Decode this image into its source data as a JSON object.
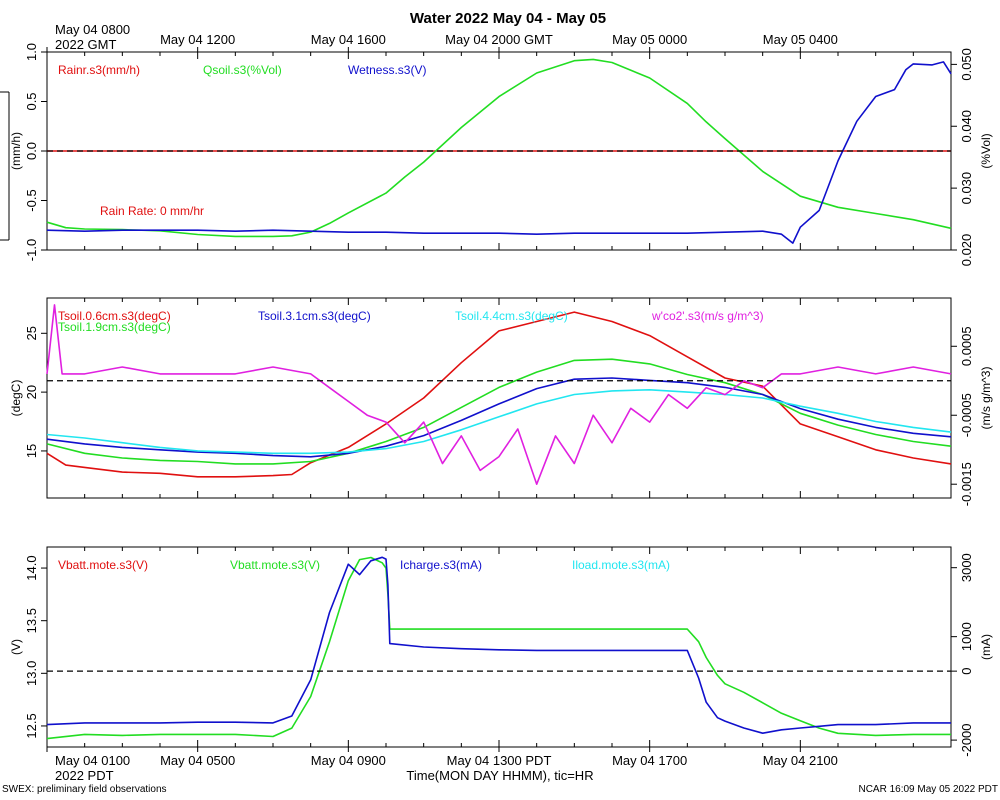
{
  "title": "Water 2022 May 04 - May 05",
  "top_axis": {
    "corner_line1": "May 04 0800",
    "corner_line2": "2022 GMT",
    "labels": [
      {
        "text": "May 04 1200",
        "hour": 4
      },
      {
        "text": "May 04 1600",
        "hour": 8
      },
      {
        "text": "May 04 2000 GMT",
        "hour": 12
      },
      {
        "text": "May 05 0000",
        "hour": 16
      },
      {
        "text": "May 05 0400",
        "hour": 20
      }
    ]
  },
  "bottom_axis": {
    "corner_line1": "May 04 0100",
    "corner_line2": "2022 PDT",
    "labels": [
      {
        "text": "May 04 0500",
        "hour": 4
      },
      {
        "text": "May 04 0900",
        "hour": 8
      },
      {
        "text": "May 04 1300 PDT",
        "hour": 12
      },
      {
        "text": "May 04 1700",
        "hour": 16
      },
      {
        "text": "May 04 2100",
        "hour": 20
      }
    ],
    "xlabel": "Time(MON DAY HHMM), tic=HR"
  },
  "footer": {
    "left": "SWEX: preliminary field observations",
    "right": "NCAR 16:09 May 05 2022 PDT"
  },
  "colors": {
    "red": "#e01010",
    "green": "#22dd22",
    "blue": "#1010cc",
    "cyan": "#22e6f0",
    "magenta": "#e020e0"
  },
  "chart_data": [
    {
      "type": "line",
      "panel": "water",
      "x_unit": "hours since May 04 0100 PDT",
      "xlim": [
        0,
        24
      ],
      "ylabel_left": "(mm/h)",
      "ylim_left": [
        -1.0,
        1.0
      ],
      "yticks_left": [
        "-1.0",
        "-0.5",
        "0.0",
        "0.5",
        "1.0"
      ],
      "ylabel_right": "(%Vol)",
      "ylim_right": [
        0.02,
        0.052
      ],
      "yticks_right": [
        "0.020",
        "0.030",
        "0.040",
        "0.050"
      ],
      "legend": [
        {
          "text": "Rainr.s3(mm/h)",
          "color": "#e01010"
        },
        {
          "text": "Qsoil.s3(%Vol)",
          "color": "#22dd22"
        },
        {
          "text": "Wetness.s3(V)",
          "color": "#1010cc"
        }
      ],
      "annotation": {
        "text": "Rain Rate: 0 mm/hr",
        "color": "#e01010"
      },
      "reference_line": {
        "axis": "left",
        "value": 0.0
      },
      "series": [
        {
          "name": "Rainr.s3(mm/h)",
          "axis": "left",
          "color": "#e01010",
          "x": [
            0,
            24
          ],
          "y": [
            0.0,
            0.0
          ]
        },
        {
          "name": "Qsoil.s3(%Vol)",
          "axis": "right",
          "color": "#22dd22",
          "x": [
            0,
            0.5,
            1,
            2,
            3,
            4,
            5,
            6,
            6.5,
            7,
            7.5,
            8,
            9,
            9.5,
            10,
            11,
            12,
            13,
            14,
            14.5,
            15,
            16,
            17,
            17.5,
            18,
            19,
            20,
            21,
            22,
            23,
            24
          ],
          "y": [
            0.0245,
            0.0236,
            0.0234,
            0.0233,
            0.0231,
            0.0225,
            0.0222,
            0.0222,
            0.0223,
            0.0229,
            0.0243,
            0.026,
            0.0292,
            0.0318,
            0.0342,
            0.0398,
            0.0448,
            0.0486,
            0.0506,
            0.0508,
            0.0503,
            0.0478,
            0.0437,
            0.0407,
            0.038,
            0.0327,
            0.0287,
            0.0269,
            0.0259,
            0.0249,
            0.0235
          ]
        },
        {
          "name": "Wetness.s3(V)",
          "axis": "left",
          "color": "#1010cc",
          "x": [
            0,
            1,
            2,
            3,
            4,
            5,
            6,
            7,
            8,
            9,
            10,
            11,
            12,
            13,
            14,
            15,
            16,
            17,
            18,
            19,
            19.5,
            19.8,
            20,
            20.5,
            21,
            21.5,
            22,
            22.5,
            22.8,
            23,
            23.5,
            23.8,
            24
          ],
          "y": [
            -0.8,
            -0.81,
            -0.8,
            -0.8,
            -0.8,
            -0.81,
            -0.8,
            -0.81,
            -0.82,
            -0.82,
            -0.83,
            -0.83,
            -0.83,
            -0.84,
            -0.83,
            -0.83,
            -0.83,
            -0.83,
            -0.82,
            -0.81,
            -0.84,
            -0.93,
            -0.77,
            -0.6,
            -0.1,
            0.3,
            0.55,
            0.62,
            0.82,
            0.88,
            0.87,
            0.9,
            0.78
          ]
        }
      ]
    },
    {
      "type": "line",
      "panel": "soil temperature",
      "x_unit": "hours since May 04 0100 PDT",
      "xlim": [
        0,
        24
      ],
      "ylabel_left": "(degC)",
      "ylim_left": [
        11,
        28
      ],
      "yticks_left": [
        "15",
        "20",
        "25"
      ],
      "ylabel_right": "(m/s g/m^3)",
      "ylim_right": [
        -0.0017,
        0.0012
      ],
      "yticks_right": [
        "-0.0015",
        "-0.0005",
        "0.0005"
      ],
      "legend": [
        {
          "text": "Tsoil.0.6cm.s3(degC)",
          "color": "#e01010"
        },
        {
          "text": "Tsoil.1.9cm.s3(degC)",
          "color": "#22dd22"
        },
        {
          "text": "Tsoil.3.1cm.s3(degC)",
          "color": "#1010cc"
        },
        {
          "text": "Tsoil.4.4cm.s3(degC)",
          "color": "#22e6f0"
        },
        {
          "text": "w'co2'.s3(m/s g/m^3)",
          "color": "#e020e0"
        }
      ],
      "reference_line": {
        "axis": "right",
        "value": 0.0
      },
      "series": [
        {
          "name": "Tsoil.0.6cm.s3(degC)",
          "axis": "left",
          "color": "#e01010",
          "x": [
            0,
            0.5,
            1,
            2,
            3,
            4,
            5,
            6,
            6.5,
            7,
            8,
            9,
            10,
            11,
            12,
            13,
            14,
            15,
            16,
            17,
            18,
            19,
            20,
            21,
            22,
            23,
            24
          ],
          "y": [
            14.8,
            13.8,
            13.6,
            13.2,
            13.1,
            12.8,
            12.8,
            12.9,
            13.0,
            14.0,
            15.3,
            17.3,
            19.5,
            22.5,
            25.2,
            26.0,
            26.8,
            26.0,
            24.8,
            23.0,
            21.2,
            20.5,
            17.3,
            16.2,
            15.1,
            14.4,
            13.9
          ]
        },
        {
          "name": "Tsoil.1.9cm.s3(degC)",
          "axis": "left",
          "color": "#22dd22",
          "x": [
            0,
            1,
            2,
            3,
            4,
            5,
            6,
            7,
            8,
            9,
            10,
            11,
            12,
            13,
            14,
            15,
            16,
            17,
            18,
            19,
            20,
            21,
            22,
            23,
            24
          ],
          "y": [
            15.6,
            14.8,
            14.4,
            14.2,
            14.1,
            13.9,
            13.9,
            14.1,
            14.8,
            15.8,
            17.0,
            18.7,
            20.4,
            21.7,
            22.7,
            22.8,
            22.4,
            21.5,
            20.8,
            19.8,
            18.2,
            17.2,
            16.4,
            15.8,
            15.4
          ]
        },
        {
          "name": "Tsoil.3.1cm.s3(degC)",
          "axis": "left",
          "color": "#1010cc",
          "x": [
            0,
            1,
            2,
            3,
            4,
            5,
            6,
            7,
            8,
            9,
            10,
            11,
            12,
            13,
            14,
            15,
            16,
            17,
            18,
            19,
            20,
            21,
            22,
            23,
            24
          ],
          "y": [
            16.0,
            15.6,
            15.3,
            15.1,
            14.9,
            14.8,
            14.6,
            14.5,
            14.8,
            15.4,
            16.3,
            17.6,
            19.0,
            20.3,
            21.1,
            21.2,
            21.0,
            20.8,
            20.4,
            19.8,
            18.6,
            17.7,
            17.0,
            16.5,
            16.2
          ]
        },
        {
          "name": "Tsoil.4.4cm.s3(degC)",
          "axis": "left",
          "color": "#22e6f0",
          "x": [
            0,
            1,
            2,
            3,
            4,
            5,
            6,
            7,
            8,
            9,
            10,
            11,
            12,
            13,
            14,
            15,
            16,
            17,
            18,
            19,
            20,
            21,
            22,
            23,
            24
          ],
          "y": [
            16.4,
            16.1,
            15.7,
            15.3,
            15.0,
            14.9,
            14.8,
            14.8,
            14.9,
            15.2,
            15.8,
            16.8,
            17.9,
            19.0,
            19.8,
            20.1,
            20.2,
            20.0,
            19.8,
            19.5,
            18.8,
            18.2,
            17.5,
            17.0,
            16.6
          ]
        },
        {
          "name": "w'co2'.s3(m/s g/m^3)",
          "axis": "right",
          "color": "#e020e0",
          "x": [
            0,
            0.2,
            0.4,
            1,
            2,
            3,
            4,
            5,
            6,
            7,
            7.5,
            8,
            8.5,
            9,
            9.5,
            10,
            10.5,
            11,
            11.5,
            12,
            12.5,
            13,
            13.5,
            14,
            14.5,
            15,
            15.5,
            16,
            16.5,
            17,
            17.5,
            18,
            18.5,
            19,
            19.5,
            20,
            21,
            22,
            23,
            24
          ],
          "y": [
            0.0001,
            0.0011,
            0.0001,
            0.0001,
            0.0002,
            0.0001,
            0.0001,
            0.0001,
            0.0002,
            0.0001,
            -0.0001,
            -0.0003,
            -0.0005,
            -0.0006,
            -0.0009,
            -0.0006,
            -0.0012,
            -0.0008,
            -0.0013,
            -0.0011,
            -0.0007,
            -0.0015,
            -0.0008,
            -0.0012,
            -0.0005,
            -0.0009,
            -0.0004,
            -0.0006,
            -0.0002,
            -0.0004,
            -0.0001,
            -0.0002,
            0.0,
            -0.0001,
            0.0001,
            0.0001,
            0.0002,
            0.0001,
            0.0002,
            0.0001
          ]
        }
      ]
    },
    {
      "type": "line",
      "panel": "battery",
      "x_unit": "hours since May 04 0100 PDT",
      "xlim": [
        0,
        24
      ],
      "ylabel_left": "(V)",
      "ylim_left": [
        12.3,
        14.2
      ],
      "yticks_left": [
        "12.5",
        "13.0",
        "13.5",
        "14.0"
      ],
      "ylabel_right": "(mA)",
      "ylim_right": [
        -2200,
        3600
      ],
      "yticks_right": [
        "-2000",
        "0",
        "1000",
        "3000"
      ],
      "legend": [
        {
          "text": "Vbatt.mote.s3(V)",
          "color": "#e01010"
        },
        {
          "text": "Vbatt.mote.s3(V)",
          "color": "#22dd22"
        },
        {
          "text": "Icharge.s3(mA)",
          "color": "#1010cc"
        },
        {
          "text": "Iload.mote.s3(mA)",
          "color": "#22e6f0"
        }
      ],
      "reference_line": {
        "axis": "right",
        "value": 0
      },
      "series": [
        {
          "name": "Vbatt.mote.s3(V)",
          "axis": "left",
          "color": "#22dd22",
          "x": [
            0,
            1,
            2,
            3,
            4,
            5,
            6,
            6.5,
            7,
            7.5,
            8,
            8.3,
            8.6,
            8.9,
            9.0,
            9.05,
            9.1,
            10,
            11,
            12,
            13,
            14,
            15,
            16,
            17,
            17.3,
            17.5,
            17.8,
            18,
            18.5,
            19,
            19.5,
            20,
            20.5,
            21,
            22,
            23,
            24
          ],
          "y": [
            12.38,
            12.42,
            12.41,
            12.42,
            12.42,
            12.42,
            12.4,
            12.48,
            12.78,
            13.3,
            13.88,
            14.08,
            14.1,
            14.05,
            14.0,
            13.75,
            13.42,
            13.42,
            13.42,
            13.42,
            13.42,
            13.42,
            13.42,
            13.42,
            13.42,
            13.3,
            13.15,
            12.98,
            12.9,
            12.82,
            12.72,
            12.62,
            12.55,
            12.48,
            12.43,
            12.41,
            12.42,
            12.42
          ]
        },
        {
          "name": "Icharge.s3(mA)",
          "axis": "right",
          "color": "#1010cc",
          "x": [
            0,
            1,
            2,
            3,
            4,
            5,
            6,
            6.5,
            7,
            7.5,
            8,
            8.3,
            8.6,
            8.9,
            9.0,
            9.05,
            9.1,
            10,
            11,
            12,
            13,
            14,
            15,
            16,
            17,
            17.3,
            17.5,
            17.8,
            18,
            18.5,
            19,
            19.5,
            20,
            20.5,
            21,
            22,
            23,
            24
          ],
          "y": [
            -1550,
            -1500,
            -1500,
            -1500,
            -1480,
            -1480,
            -1500,
            -1300,
            -250,
            1700,
            3100,
            2800,
            3200,
            3300,
            3250,
            2500,
            800,
            700,
            650,
            620,
            600,
            600,
            600,
            600,
            600,
            -200,
            -900,
            -1350,
            -1450,
            -1650,
            -1800,
            -1700,
            -1650,
            -1600,
            -1550,
            -1550,
            -1500,
            -1500
          ]
        }
      ]
    }
  ]
}
